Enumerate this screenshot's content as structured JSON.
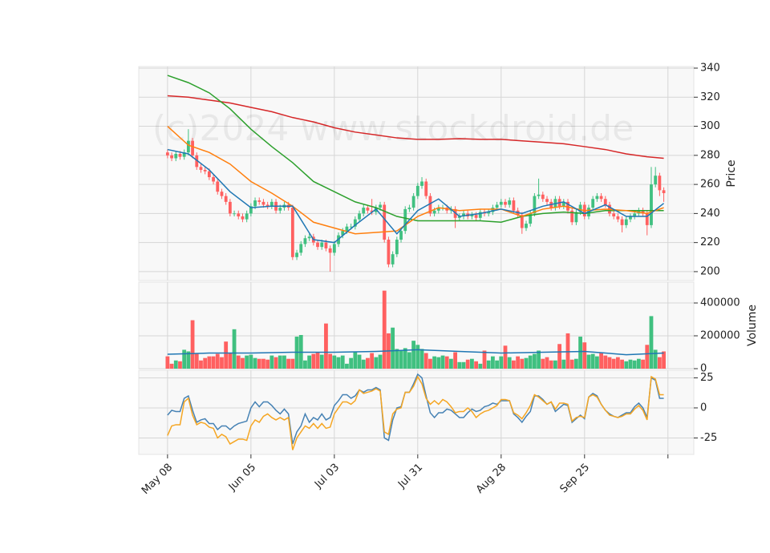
{
  "chart_data": [
    {
      "type": "candlestick",
      "ylabel": "Price",
      "watermark": "(c)2024 www.stockdroid.de",
      "xlim": [
        -6.9,
        126.2
      ],
      "ylim": [
        193.9,
        341.1
      ],
      "yticks": [
        200,
        220,
        240,
        260,
        280,
        300,
        320,
        340
      ],
      "grid": true,
      "up_color": "#40c080",
      "down_color": "#ff6060",
      "open": [
        282,
        280,
        278,
        281,
        279,
        282,
        290,
        280,
        272,
        270,
        269,
        265,
        262,
        255,
        252,
        248,
        240,
        240,
        238,
        236,
        240,
        245,
        249,
        248,
        246,
        245,
        248,
        242,
        244,
        246,
        244,
        210,
        213,
        219,
        223,
        224,
        220,
        217,
        220,
        216,
        213,
        219,
        225,
        228,
        231,
        231,
        236,
        240,
        244,
        242,
        241,
        244,
        246,
        222,
        205,
        212,
        222,
        228,
        243,
        244,
        252,
        259,
        262,
        252,
        240,
        242,
        244,
        244,
        242,
        243,
        237,
        238,
        240,
        238,
        239,
        237,
        241,
        240,
        241,
        244,
        246,
        248,
        246,
        249,
        242,
        239,
        230,
        233,
        240,
        252,
        253,
        250,
        248,
        244,
        250,
        245,
        248,
        242,
        234,
        241,
        246,
        238,
        244,
        250,
        252,
        250,
        246,
        240,
        238,
        236,
        232,
        236,
        238,
        240,
        242,
        240,
        232,
        260,
        266,
        256
      ],
      "high": [
        284,
        282,
        283,
        283,
        284,
        298,
        292,
        282,
        274,
        272,
        271,
        267,
        264,
        257,
        254,
        250,
        242,
        242,
        240,
        242,
        247,
        251,
        251,
        250,
        248,
        250,
        250,
        246,
        248,
        248,
        246,
        215,
        221,
        225,
        226,
        226,
        222,
        222,
        222,
        218,
        221,
        227,
        230,
        233,
        233,
        238,
        242,
        246,
        246,
        250,
        246,
        248,
        248,
        224,
        214,
        224,
        230,
        245,
        246,
        254,
        261,
        265,
        264,
        254,
        244,
        246,
        246,
        246,
        245,
        245,
        240,
        242,
        242,
        241,
        241,
        243,
        243,
        243,
        246,
        248,
        250,
        250,
        251,
        251,
        244,
        241,
        235,
        242,
        254,
        264,
        255,
        252,
        250,
        252,
        252,
        250,
        250,
        244,
        243,
        248,
        248,
        246,
        252,
        254,
        254,
        252,
        248,
        242,
        240,
        238,
        238,
        240,
        242,
        244,
        244,
        242,
        272,
        272,
        268,
        258
      ],
      "low": [
        278,
        276,
        276,
        277,
        277,
        280,
        278,
        270,
        268,
        267,
        263,
        260,
        253,
        250,
        246,
        238,
        238,
        236,
        234,
        234,
        238,
        243,
        246,
        244,
        243,
        243,
        240,
        240,
        242,
        242,
        208,
        208,
        211,
        217,
        221,
        218,
        215,
        215,
        214,
        200,
        211,
        217,
        223,
        226,
        229,
        229,
        234,
        238,
        240,
        239,
        239,
        242,
        220,
        203,
        203,
        210,
        220,
        226,
        241,
        242,
        250,
        257,
        250,
        238,
        238,
        240,
        242,
        240,
        240,
        230,
        235,
        236,
        236,
        236,
        235,
        235,
        238,
        238,
        239,
        242,
        244,
        244,
        244,
        240,
        237,
        226,
        228,
        231,
        238,
        250,
        248,
        246,
        242,
        242,
        243,
        243,
        240,
        232,
        232,
        239,
        236,
        236,
        242,
        248,
        248,
        244,
        238,
        236,
        234,
        227,
        230,
        234,
        236,
        238,
        238,
        225,
        230,
        258,
        252,
        248
      ],
      "close": [
        280,
        278,
        281,
        279,
        282,
        290,
        280,
        272,
        270,
        269,
        265,
        262,
        255,
        252,
        248,
        240,
        240,
        238,
        236,
        240,
        245,
        249,
        248,
        246,
        245,
        248,
        242,
        244,
        246,
        244,
        210,
        213,
        219,
        223,
        224,
        220,
        217,
        220,
        216,
        213,
        219,
        225,
        228,
        231,
        231,
        236,
        240,
        244,
        242,
        241,
        244,
        246,
        222,
        205,
        212,
        222,
        228,
        243,
        244,
        252,
        259,
        262,
        252,
        240,
        242,
        244,
        244,
        242,
        243,
        237,
        238,
        240,
        238,
        239,
        237,
        241,
        240,
        241,
        244,
        246,
        248,
        246,
        249,
        242,
        239,
        230,
        233,
        240,
        252,
        253,
        250,
        248,
        244,
        250,
        245,
        248,
        242,
        234,
        241,
        246,
        238,
        244,
        250,
        252,
        250,
        246,
        240,
        238,
        236,
        232,
        236,
        238,
        240,
        242,
        240,
        232,
        260,
        266,
        256,
        254
      ],
      "series": [
        {
          "color": "#d62728",
          "x": [
            0,
            5,
            10,
            15,
            20,
            25,
            30,
            35,
            40,
            45,
            50,
            55,
            60,
            65,
            70,
            75,
            80,
            85,
            90,
            95,
            100,
            105,
            110,
            115,
            119
          ],
          "values": [
            321,
            320,
            318,
            316,
            313,
            310,
            306,
            303,
            299,
            296,
            294,
            292,
            291,
            291,
            291.5,
            291,
            291,
            290,
            289,
            288,
            286,
            284,
            281,
            279,
            278
          ]
        },
        {
          "color": "#2ca02c",
          "x": [
            0,
            5,
            10,
            15,
            20,
            25,
            30,
            35,
            40,
            45,
            50,
            55,
            60,
            65,
            70,
            75,
            80,
            85,
            90,
            95,
            100,
            105,
            110,
            115,
            119
          ],
          "values": [
            335,
            330,
            323,
            312,
            298,
            286,
            275,
            262,
            255,
            248,
            244,
            238,
            235,
            235,
            235,
            235,
            234,
            238,
            240,
            241,
            240,
            242,
            242,
            242,
            242
          ]
        },
        {
          "color": "#ff7f0e",
          "x": [
            0,
            5,
            10,
            15,
            20,
            25,
            30,
            35,
            40,
            45,
            50,
            55,
            60,
            65,
            70,
            75,
            80,
            85,
            90,
            95,
            100,
            105,
            110,
            115,
            119
          ],
          "values": [
            300,
            287,
            282,
            274,
            262,
            254,
            245,
            234,
            230,
            226,
            227,
            228,
            238,
            244,
            242,
            243,
            243,
            238,
            243,
            245,
            242,
            243,
            242,
            240,
            244
          ]
        },
        {
          "color": "#1f77b4",
          "x": [
            0,
            5,
            10,
            15,
            20,
            25,
            30,
            35,
            40,
            45,
            50,
            55,
            60,
            65,
            70,
            75,
            80,
            85,
            90,
            95,
            100,
            105,
            110,
            115,
            119
          ],
          "values": [
            284,
            281,
            270,
            255,
            244,
            245,
            245,
            222,
            220,
            232,
            243,
            226,
            242,
            250,
            238,
            240,
            243,
            240,
            245,
            248,
            240,
            246,
            238,
            238,
            247
          ]
        }
      ]
    },
    {
      "type": "volume",
      "ylabel": "Volume",
      "xlim": [
        -6.9,
        126.2
      ],
      "ylim": [
        0,
        527000
      ],
      "yticks": [
        0,
        200000,
        400000
      ],
      "grid": true,
      "values": [
        75000,
        30000,
        50000,
        45000,
        115000,
        105000,
        295000,
        90000,
        50000,
        65000,
        75000,
        75000,
        90000,
        70000,
        165000,
        95000,
        240000,
        80000,
        65000,
        80000,
        85000,
        65000,
        60000,
        60000,
        55000,
        80000,
        70000,
        80000,
        80000,
        60000,
        60000,
        195000,
        205000,
        50000,
        80000,
        90000,
        100000,
        85000,
        275000,
        90000,
        80000,
        70000,
        80000,
        30000,
        65000,
        100000,
        85000,
        55000,
        65000,
        95000,
        70000,
        85000,
        475000,
        215000,
        250000,
        120000,
        110000,
        125000,
        100000,
        170000,
        145000,
        120000,
        95000,
        60000,
        75000,
        70000,
        80000,
        75000,
        60000,
        100000,
        40000,
        40000,
        55000,
        60000,
        45000,
        30000,
        110000,
        50000,
        75000,
        50000,
        75000,
        140000,
        70000,
        50000,
        75000,
        60000,
        65000,
        80000,
        90000,
        110000,
        60000,
        70000,
        50000,
        50000,
        150000,
        55000,
        215000,
        55000,
        60000,
        195000,
        160000,
        85000,
        90000,
        75000,
        95000,
        80000,
        70000,
        60000,
        70000,
        55000,
        45000,
        55000,
        50000,
        60000,
        55000,
        145000,
        320000,
        115000,
        70000,
        105000
      ],
      "series": [
        {
          "color": "#1f77b4",
          "x": [
            0,
            10,
            20,
            30,
            40,
            50,
            60,
            70,
            80,
            90,
            100,
            110,
            119
          ],
          "values": [
            88000,
            95000,
            95000,
            100000,
            100000,
            105000,
            115000,
            105000,
            95000,
            100000,
            105000,
            85000,
            95000
          ]
        }
      ]
    },
    {
      "type": "line",
      "xlim": [
        -6.9,
        126.2
      ],
      "ylim": [
        -38.7,
        31.3
      ],
      "yticks": [
        -25,
        0,
        25
      ],
      "grid": true,
      "xticks": [
        {
          "value": 0,
          "label": "May 08"
        },
        {
          "value": 20,
          "label": "Jun 05"
        },
        {
          "value": 40,
          "label": "Jul 03"
        },
        {
          "value": 60,
          "label": "Jul 31"
        },
        {
          "value": 80,
          "label": "Aug 28"
        },
        {
          "value": 100,
          "label": "Sep 25"
        },
        {
          "value": 120,
          "label": null
        }
      ],
      "series": [
        {
          "color": "#4682b4",
          "values": [
            -6,
            -2,
            -3,
            -3,
            8,
            10,
            -2,
            -12,
            -10,
            -9,
            -13,
            -13,
            -18,
            -15,
            -15,
            -18,
            -15,
            -13,
            -12,
            -11,
            0,
            5,
            1,
            5,
            5,
            2,
            -2,
            -5,
            -1,
            -5,
            -30,
            -20,
            -15,
            -5,
            -12,
            -8,
            -10,
            -5,
            -10,
            -8,
            2,
            6,
            11,
            11,
            8,
            10,
            15,
            13,
            15,
            15,
            17,
            15,
            -25,
            -27,
            -10,
            0,
            1,
            13,
            13,
            20,
            28,
            25,
            10,
            -4,
            -8,
            -4,
            -4,
            -1,
            -2,
            -5,
            -8,
            -8,
            -4,
            -1,
            -3,
            -2,
            1,
            2,
            4,
            3,
            6,
            6,
            6,
            -5,
            -8,
            -12,
            -7,
            -3,
            10,
            10,
            7,
            3,
            5,
            -3,
            0,
            3,
            2,
            -12,
            -9,
            -6,
            -9,
            9,
            12,
            10,
            3,
            -2,
            -5,
            -7,
            -8,
            -6,
            -4,
            -4,
            1,
            4,
            0,
            -8,
            25,
            23,
            8,
            8
          ]
        },
        {
          "color": "#f5a623",
          "values": [
            -23,
            -15,
            -14,
            -14,
            5,
            8,
            -6,
            -14,
            -12,
            -13,
            -16,
            -17,
            -25,
            -22,
            -24,
            -30,
            -28,
            -26,
            -26,
            -27,
            -15,
            -10,
            -12,
            -7,
            -5,
            -8,
            -10,
            -8,
            -10,
            -8,
            -35,
            -25,
            -20,
            -15,
            -17,
            -13,
            -17,
            -13,
            -17,
            -16,
            -5,
            0,
            5,
            5,
            3,
            6,
            15,
            12,
            13,
            14,
            16,
            14,
            -20,
            -22,
            -5,
            -1,
            0,
            13,
            13,
            18,
            26,
            20,
            8,
            3,
            6,
            3,
            7,
            5,
            1,
            -4,
            -3,
            -3,
            0,
            -3,
            -8,
            -5,
            -3,
            -2,
            0,
            2,
            7,
            7,
            6,
            -4,
            -6,
            -9,
            -4,
            2,
            11,
            9,
            6,
            3,
            5,
            -1,
            4,
            4,
            3,
            -11,
            -8,
            -7,
            -8,
            9,
            11,
            9,
            3,
            -2,
            -6,
            -7,
            -8,
            -7,
            -5,
            -5,
            -1,
            2,
            -2,
            -10,
            26,
            24,
            11,
            11
          ]
        }
      ]
    }
  ]
}
